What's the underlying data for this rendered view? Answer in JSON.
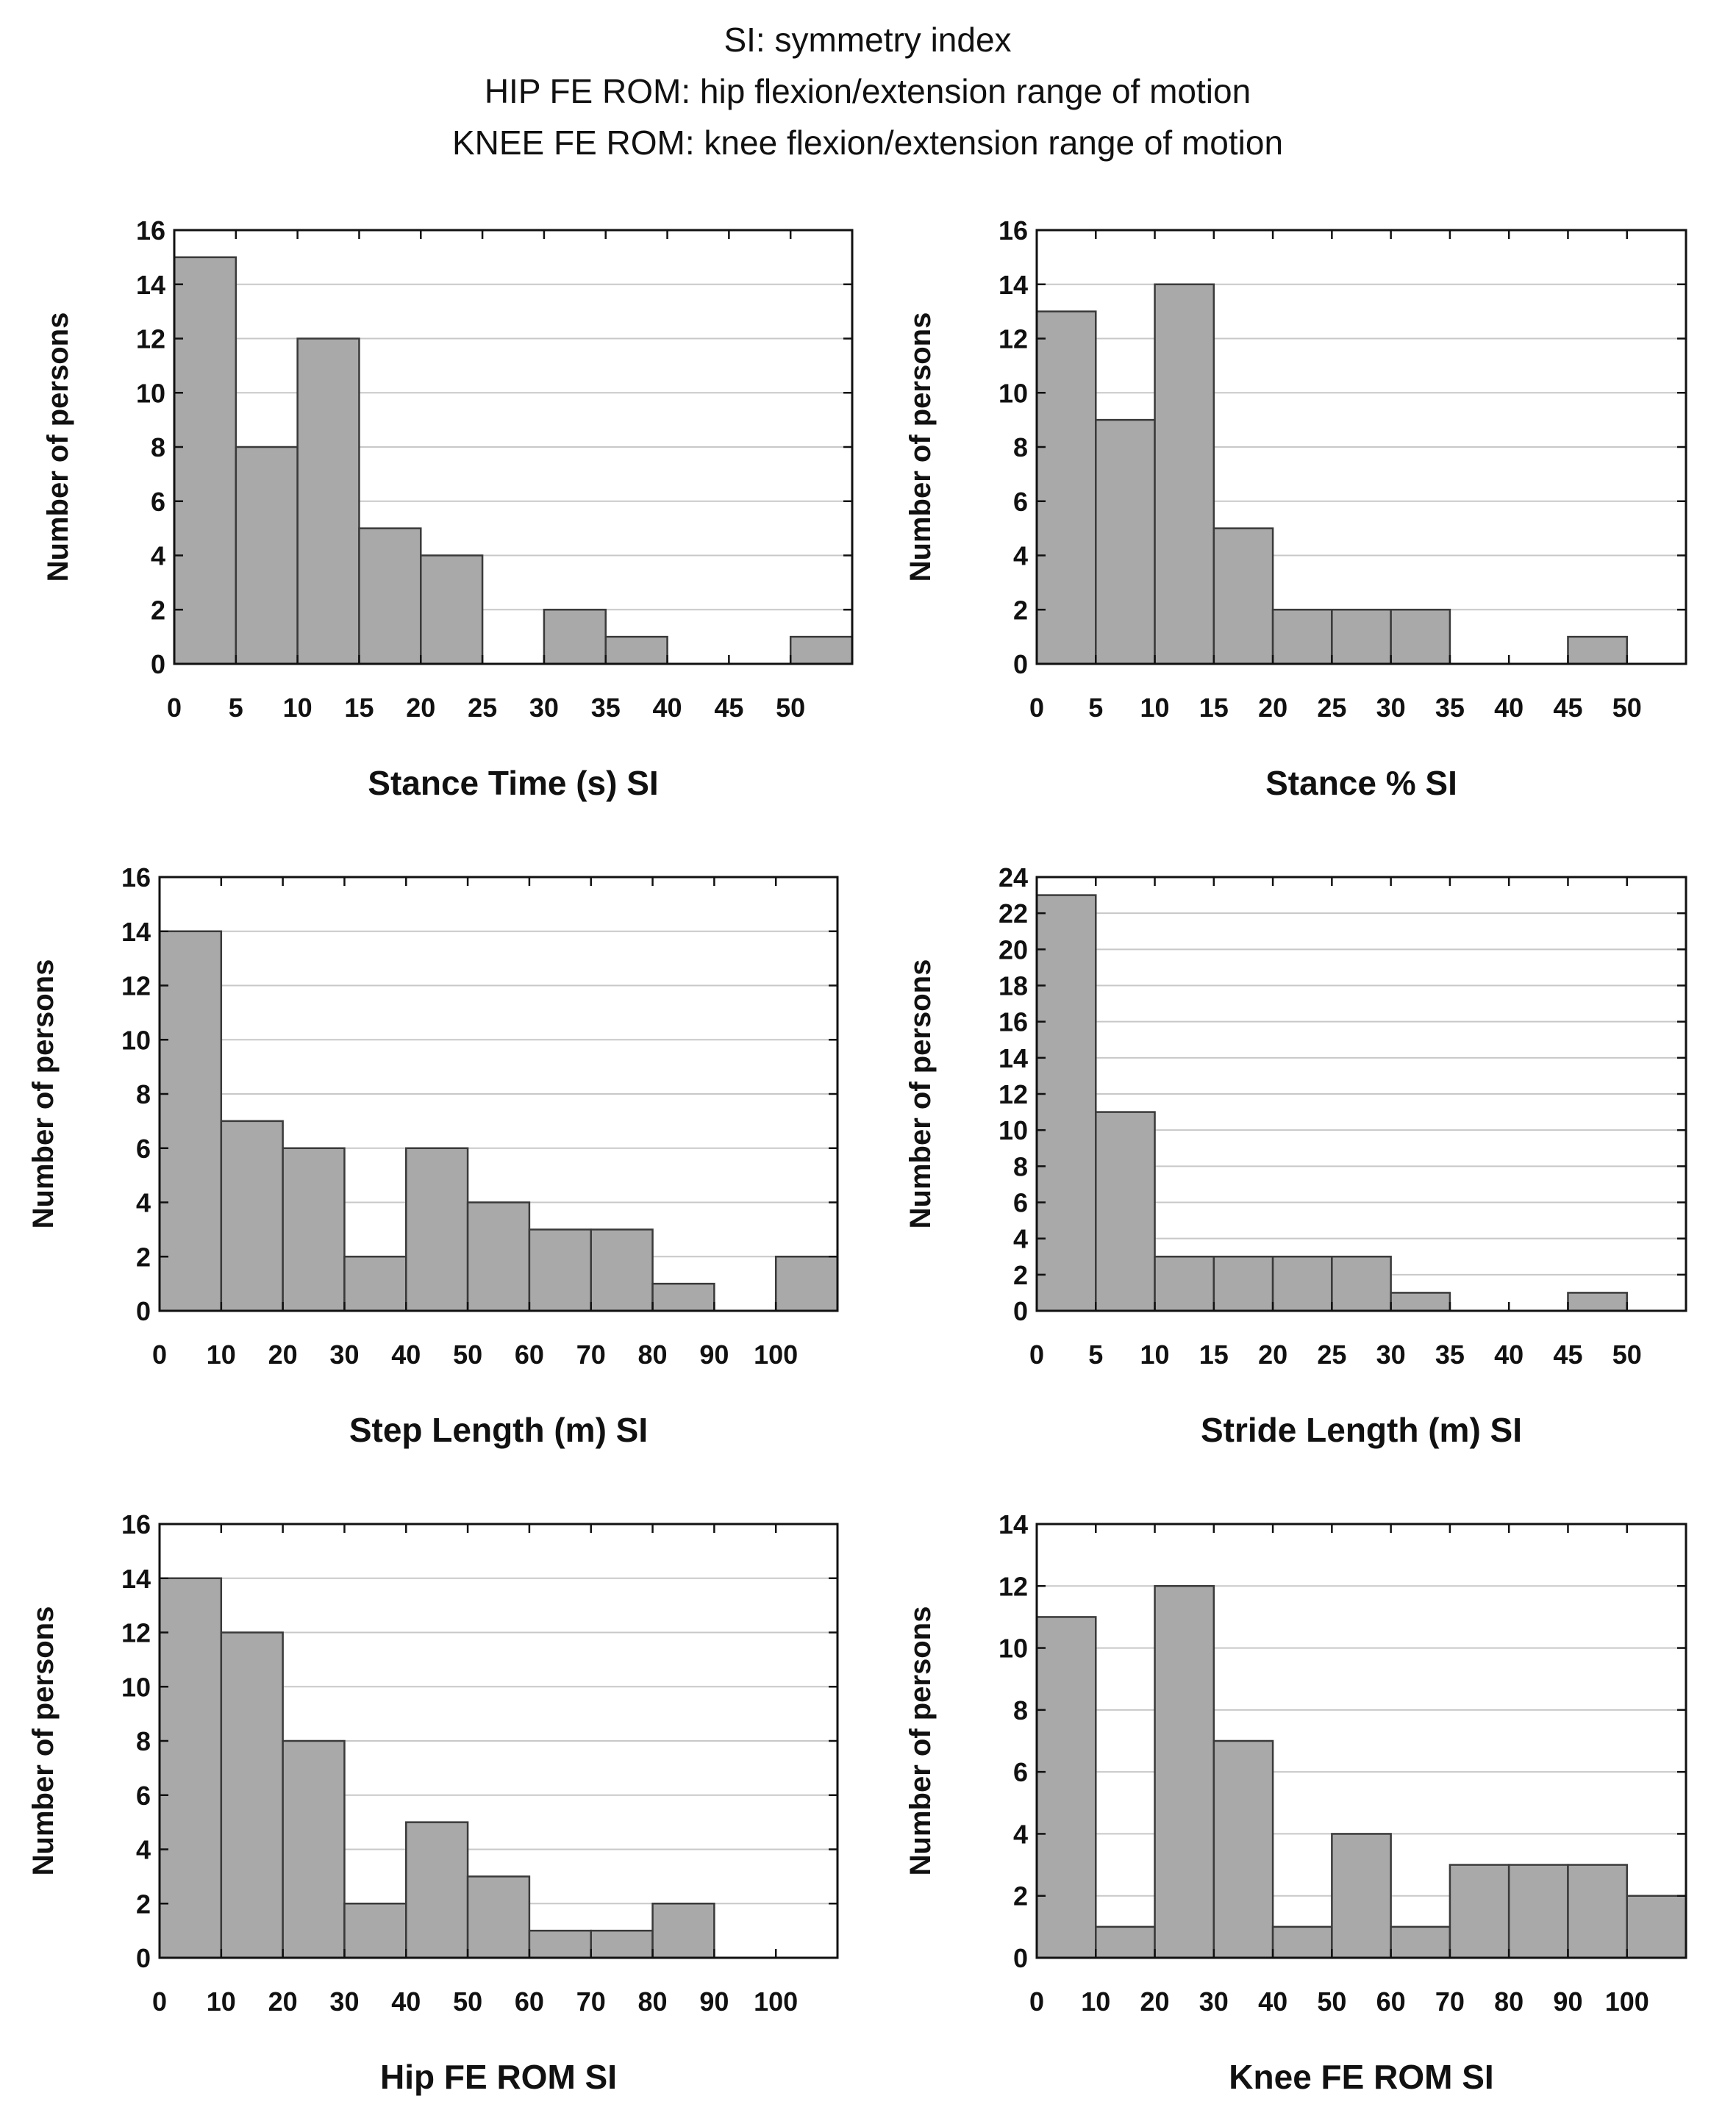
{
  "header": {
    "lines": [
      "SI: symmetry index",
      "HIP FE ROM: hip flexion/extension range of motion",
      "KNEE FE ROM: knee flexion/extension range of motion"
    ]
  },
  "chart_data": [
    {
      "type": "bar",
      "title": "",
      "xlabel": "Stance Time (s) SI",
      "ylabel": "Number of persons",
      "ylim": [
        0,
        16
      ],
      "yticks": [
        0,
        2,
        4,
        6,
        8,
        10,
        12,
        14,
        16
      ],
      "xlim": [
        0,
        55
      ],
      "xticks": [
        0,
        5,
        10,
        15,
        20,
        25,
        30,
        35,
        40,
        45,
        50
      ],
      "bin_width": 5,
      "bins": [
        0,
        5,
        10,
        15,
        20,
        25,
        30,
        35,
        40,
        45,
        50
      ],
      "values": [
        15,
        8,
        12,
        5,
        4,
        0,
        2,
        1,
        0,
        0,
        1
      ],
      "grid": true
    },
    {
      "type": "bar",
      "title": "",
      "xlabel": "Stance % SI",
      "ylabel": "Number of persons",
      "ylim": [
        0,
        16
      ],
      "yticks": [
        0,
        2,
        4,
        6,
        8,
        10,
        12,
        14,
        16
      ],
      "xlim": [
        0,
        55
      ],
      "xticks": [
        0,
        5,
        10,
        15,
        20,
        25,
        30,
        35,
        40,
        45,
        50
      ],
      "bin_width": 5,
      "bins": [
        0,
        5,
        10,
        15,
        20,
        25,
        30,
        35,
        40,
        45
      ],
      "values": [
        13,
        9,
        14,
        5,
        2,
        2,
        2,
        0,
        0,
        1
      ],
      "grid": true
    },
    {
      "type": "bar",
      "title": "",
      "xlabel": "Step Length (m) SI",
      "ylabel": "Number of persons",
      "ylim": [
        0,
        16
      ],
      "yticks": [
        0,
        2,
        4,
        6,
        8,
        10,
        12,
        14,
        16
      ],
      "xlim": [
        0,
        110
      ],
      "xticks": [
        0,
        10,
        20,
        30,
        40,
        50,
        60,
        70,
        80,
        90,
        100
      ],
      "bin_width": 10,
      "bins": [
        0,
        10,
        20,
        30,
        40,
        50,
        60,
        70,
        80,
        90,
        100
      ],
      "values": [
        14,
        7,
        6,
        2,
        6,
        4,
        3,
        3,
        1,
        0,
        2
      ],
      "grid": true
    },
    {
      "type": "bar",
      "title": "",
      "xlabel": "Stride Length (m) SI",
      "ylabel": "Number of persons",
      "ylim": [
        0,
        24
      ],
      "yticks": [
        0,
        2,
        4,
        6,
        8,
        10,
        12,
        14,
        16,
        18,
        20,
        22,
        24
      ],
      "xlim": [
        0,
        55
      ],
      "xticks": [
        0,
        5,
        10,
        15,
        20,
        25,
        30,
        35,
        40,
        45,
        50
      ],
      "bin_width": 5,
      "bins": [
        0,
        5,
        10,
        15,
        20,
        25,
        30,
        35,
        40,
        45
      ],
      "values": [
        23,
        11,
        3,
        3,
        3,
        3,
        1,
        0,
        0,
        1
      ],
      "grid": true
    },
    {
      "type": "bar",
      "title": "",
      "xlabel": "Hip FE ROM SI",
      "ylabel": "Number of persons",
      "ylim": [
        0,
        16
      ],
      "yticks": [
        0,
        2,
        4,
        6,
        8,
        10,
        12,
        14,
        16
      ],
      "xlim": [
        0,
        110
      ],
      "xticks": [
        0,
        10,
        20,
        30,
        40,
        50,
        60,
        70,
        80,
        90,
        100
      ],
      "bin_width": 10,
      "bins": [
        0,
        10,
        20,
        30,
        40,
        50,
        60,
        70,
        80
      ],
      "values": [
        14,
        12,
        8,
        2,
        5,
        3,
        1,
        1,
        2
      ],
      "grid": true
    },
    {
      "type": "bar",
      "title": "",
      "xlabel": "Knee FE ROM SI",
      "ylabel": "Number of persons",
      "ylim": [
        0,
        14
      ],
      "yticks": [
        0,
        2,
        4,
        6,
        8,
        10,
        12,
        14
      ],
      "xlim": [
        0,
        110
      ],
      "xticks": [
        0,
        10,
        20,
        30,
        40,
        50,
        60,
        70,
        80,
        90,
        100
      ],
      "bin_width": 10,
      "bins": [
        0,
        10,
        20,
        30,
        40,
        50,
        60,
        70,
        80,
        90,
        100
      ],
      "values": [
        11,
        1,
        12,
        7,
        1,
        4,
        1,
        3,
        3,
        3,
        2
      ],
      "grid": true
    }
  ]
}
